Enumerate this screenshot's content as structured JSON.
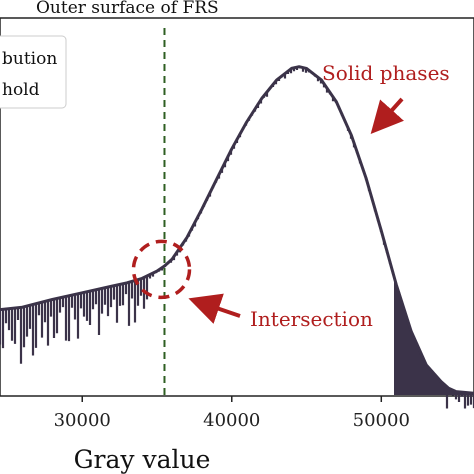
{
  "chart_data": {
    "type": "line",
    "title": "",
    "xlabel": "Gray value",
    "ylabel": "",
    "xlim": [
      24500,
      56200
    ],
    "ylim": [
      0,
      1
    ],
    "x_ticks": [
      30000,
      40000,
      50000
    ],
    "tick_labels": [
      "30000",
      "40000",
      "50000"
    ],
    "grid": false,
    "series": [
      {
        "line_color": "#3b3349",
        "x": [
          24500,
          26000,
          28000,
          30000,
          32000,
          33000,
          34000,
          35000,
          35500,
          36000,
          37000,
          38000,
          39000,
          40000,
          41000,
          42000,
          43000,
          44000,
          44500,
          45000,
          46000,
          47000,
          48000,
          49000,
          50000,
          51000,
          52000,
          53000,
          54000,
          54500,
          55000,
          56200
        ],
        "y": [
          0.255,
          0.262,
          0.285,
          0.305,
          0.325,
          0.335,
          0.348,
          0.37,
          0.385,
          0.405,
          0.47,
          0.555,
          0.645,
          0.735,
          0.815,
          0.885,
          0.94,
          0.975,
          0.98,
          0.975,
          0.94,
          0.875,
          0.775,
          0.645,
          0.49,
          0.33,
          0.19,
          0.09,
          0.04,
          0.02,
          0.01,
          0.005
        ]
      }
    ],
    "threshold_line": {
      "x": 35500,
      "color": "#2e5e22",
      "label": "Outer surface of FRS"
    },
    "legend": {
      "position": "top-left",
      "entries": [
        "bution",
        "hold"
      ]
    },
    "annotations": [
      {
        "text": "Solid phases",
        "color": "#b01e1e"
      },
      {
        "text": "Intersection",
        "color": "#b01e1e"
      }
    ],
    "intersection": {
      "x": 35300,
      "y": 0.375
    }
  }
}
